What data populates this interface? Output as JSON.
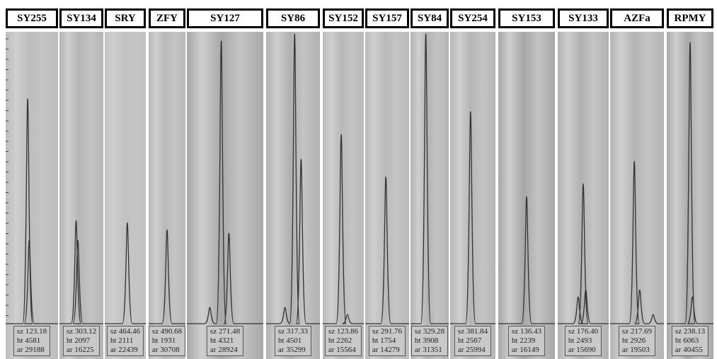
{
  "panels": [
    {
      "label": "SY255",
      "sz": "sz 123.18",
      "ht": "ht 4581",
      "ar": "ar 29188"
    },
    {
      "label": "SY134",
      "sz": "sz 303.12",
      "ht": "ht 2097",
      "ar": "ar 16225"
    },
    {
      "label": "SRY",
      "sz": "sz 464.46",
      "ht": "ht 2111",
      "ar": "ar 22439"
    },
    {
      "label": "ZFY",
      "sz": "sz 490.68",
      "ht": "ht 1931",
      "ar": "ar 30708"
    },
    {
      "label": "SY127",
      "sz": "sz 271.48",
      "ht": "ht 4321",
      "ar": "ar 28924"
    },
    {
      "label": "SY86",
      "sz": "sz 317.33",
      "ht": "ht 4501",
      "ar": "ar 35299"
    },
    {
      "label": "SY152",
      "sz": "sz 123.86",
      "ht": "ht 2262",
      "ar": "ar 15564"
    },
    {
      "label": "SY157",
      "sz": "sz 291.76",
      "ht": "ht 1754",
      "ar": "ar 14279"
    },
    {
      "label": "SY84",
      "sz": "sz 329.28",
      "ht": "ht 3908",
      "ar": "ar 31351"
    },
    {
      "label": "SY254",
      "sz": "sz 381.84",
      "ht": "ht 2567",
      "ar": "ar 25994"
    },
    {
      "label": "SY153",
      "sz": "sz 136.43",
      "ht": "ht 2239",
      "ar": "ar 16149"
    },
    {
      "label": "SY133",
      "sz": "sz 176.40",
      "ht": "ht 2493",
      "ar": "ar 15690"
    },
    {
      "label": "AZFa",
      "sz": "sz 217.69",
      "ht": "ht 2926",
      "ar": "ar 19503"
    },
    {
      "label": "RPMY",
      "sz": "sz 238.13",
      "ht": "ht 6063",
      "ar": "ar 40455"
    }
  ]
}
